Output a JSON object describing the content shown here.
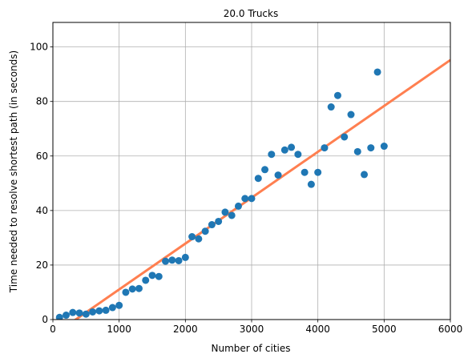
{
  "chart_data": {
    "type": "scatter",
    "title": "20.0 Trucks",
    "xlabel": "Number of cities",
    "ylabel": "Time needed to resolve shortest path (in seconds)",
    "xlim": [
      0,
      6000
    ],
    "ylim": [
      0,
      109
    ],
    "xticks": [
      0,
      1000,
      2000,
      3000,
      4000,
      5000,
      6000
    ],
    "yticks": [
      0,
      20,
      40,
      60,
      80,
      100
    ],
    "grid": true,
    "legend": "none",
    "series": [
      {
        "type": "scatter",
        "color": "#1f77b4",
        "points": [
          [
            100,
            0.8
          ],
          [
            200,
            1.6
          ],
          [
            300,
            2.6
          ],
          [
            400,
            2.4
          ],
          [
            500,
            2.0
          ],
          [
            600,
            2.8
          ],
          [
            700,
            3.2
          ],
          [
            800,
            3.4
          ],
          [
            900,
            4.4
          ],
          [
            1000,
            5.2
          ],
          [
            1100,
            10.0
          ],
          [
            1200,
            11.2
          ],
          [
            1300,
            11.4
          ],
          [
            1400,
            14.4
          ],
          [
            1500,
            16.2
          ],
          [
            1600,
            15.8
          ],
          [
            1700,
            21.4
          ],
          [
            1800,
            21.8
          ],
          [
            1900,
            21.6
          ],
          [
            2000,
            22.8
          ],
          [
            2100,
            30.4
          ],
          [
            2200,
            29.6
          ],
          [
            2300,
            32.4
          ],
          [
            2400,
            34.8
          ],
          [
            2500,
            36.0
          ],
          [
            2600,
            39.4
          ],
          [
            2700,
            38.2
          ],
          [
            2800,
            41.6
          ],
          [
            2900,
            44.4
          ],
          [
            3000,
            44.4
          ],
          [
            3100,
            51.8
          ],
          [
            3200,
            55.0
          ],
          [
            3300,
            60.6
          ],
          [
            3400,
            53.0
          ],
          [
            3500,
            62.2
          ],
          [
            3600,
            63.2
          ],
          [
            3700,
            60.6
          ],
          [
            3800,
            54.0
          ],
          [
            3900,
            49.6
          ],
          [
            4000,
            54.0
          ],
          [
            4100,
            63.0
          ],
          [
            4200,
            78.0
          ],
          [
            4300,
            82.2
          ],
          [
            4400,
            67.0
          ],
          [
            4500,
            75.2
          ],
          [
            4600,
            61.6
          ],
          [
            4700,
            53.2
          ],
          [
            4800,
            63.0
          ],
          [
            4900,
            90.8
          ],
          [
            5000,
            63.6
          ]
        ]
      },
      {
        "type": "line",
        "color": "#ff7f50",
        "points": [
          [
            0,
            -5.8
          ],
          [
            6000,
            95.2
          ]
        ]
      }
    ]
  }
}
